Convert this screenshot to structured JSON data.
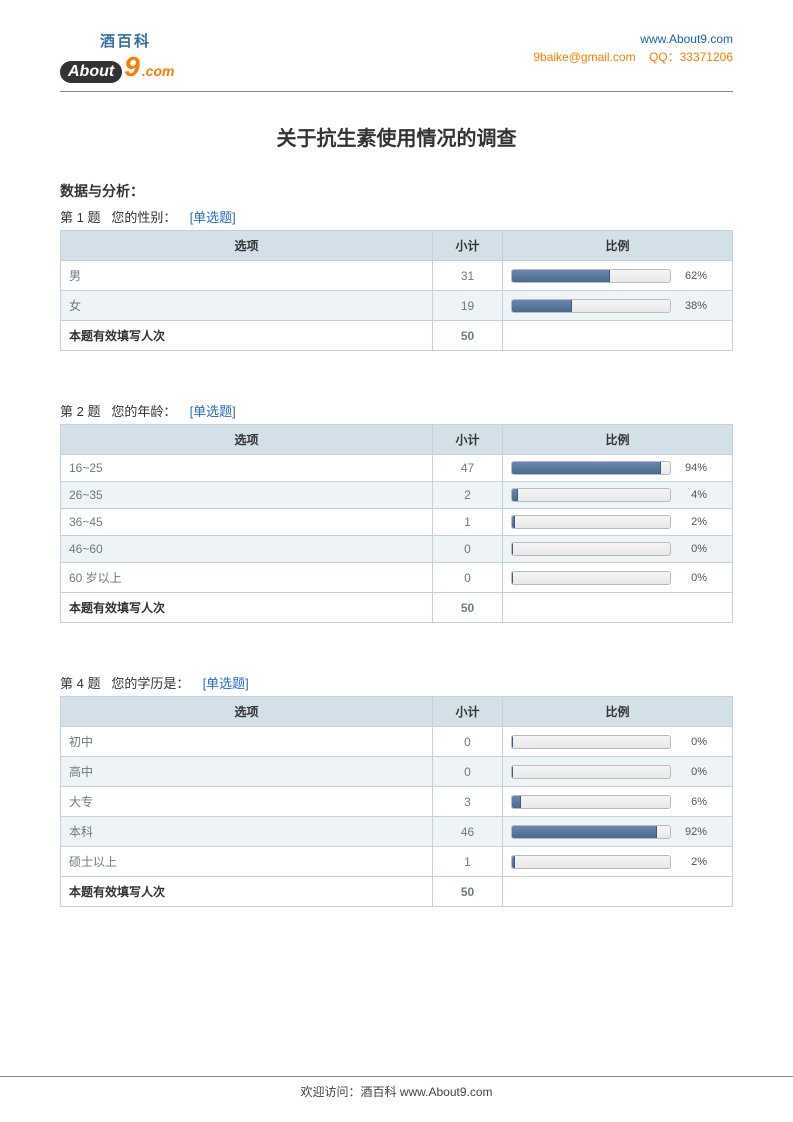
{
  "header": {
    "logo_cn": "酒百科",
    "logo_about": "About",
    "logo_9": "9",
    "logo_com": ".com",
    "url": "www.About9.com",
    "email": "9baike@gmail.com",
    "qq_label": "QQ：",
    "qq": "33371206"
  },
  "title": "关于抗生素使用情况的调查",
  "section_label": "数据与分析：",
  "table_headers": {
    "option": "选项",
    "count": "小计",
    "ratio": "比例"
  },
  "total_label": "本题有效填写人次",
  "colors": {
    "header_bg": "#d3e0e8",
    "border": "#c5d2da",
    "bar_fill": "#4a6a92",
    "bar_bg": "#e8e8e8",
    "tag": "#2a6bc6"
  },
  "questions": [
    {
      "number": "第 1 题",
      "text": "您的性别：",
      "tag": "[单选题]",
      "total": 50,
      "rows": [
        {
          "label": "男",
          "count": 31,
          "pct": 62
        },
        {
          "label": "女",
          "count": 19,
          "pct": 38
        }
      ]
    },
    {
      "number": "第 2 题",
      "text": "您的年龄：",
      "tag": "[单选题]",
      "total": 50,
      "rows": [
        {
          "label": "16~25",
          "count": 47,
          "pct": 94
        },
        {
          "label": "26~35",
          "count": 2,
          "pct": 4
        },
        {
          "label": "36~45",
          "count": 1,
          "pct": 2
        },
        {
          "label": "46~60",
          "count": 0,
          "pct": 0
        },
        {
          "label": "60 岁以上",
          "count": 0,
          "pct": 0
        }
      ]
    },
    {
      "number": "第 4 题",
      "text": "您的学历是：",
      "tag": "[单选题]",
      "total": 50,
      "rows": [
        {
          "label": "初中",
          "count": 0,
          "pct": 0
        },
        {
          "label": "高中",
          "count": 0,
          "pct": 0
        },
        {
          "label": "大专",
          "count": 3,
          "pct": 6
        },
        {
          "label": "本科",
          "count": 46,
          "pct": 92
        },
        {
          "label": "硕士以上",
          "count": 1,
          "pct": 2
        }
      ]
    }
  ],
  "footer": {
    "prefix": "欢迎访问：酒百科  ",
    "url": "www.About9.com"
  }
}
